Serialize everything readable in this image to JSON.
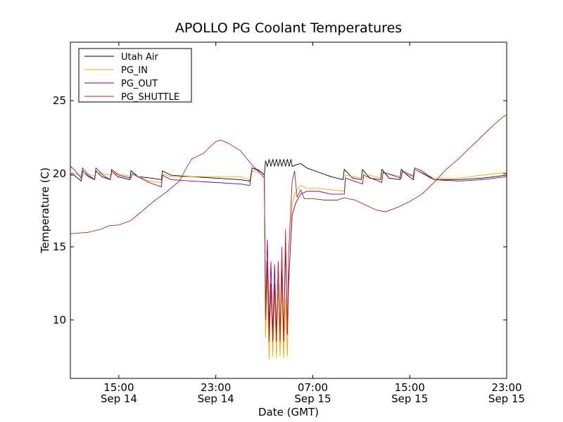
{
  "chart_data": {
    "type": "line",
    "title": "APOLLO PG Coolant Temperatures",
    "xlabel": "Date (GMT)",
    "ylabel": "Temperature (C)",
    "xlim_hours": [
      11,
      47
    ],
    "ylim": [
      6,
      29
    ],
    "yticks": [
      10,
      15,
      20,
      25
    ],
    "xticks": [
      {
        "hour": 15,
        "time": "15:00",
        "date": "Sep 14"
      },
      {
        "hour": 23,
        "time": "23:00",
        "date": "Sep 14"
      },
      {
        "hour": 31,
        "time": "07:00",
        "date": "Sep 15"
      },
      {
        "hour": 39,
        "time": "15:00",
        "date": "Sep 15"
      },
      {
        "hour": 47,
        "time": "23:00",
        "date": "Sep 15"
      }
    ],
    "legend_position": "top-left",
    "x_unit": "hours since Sep 14 00:00 GMT",
    "series": [
      {
        "name": "Utah Air",
        "color": "#000000",
        "points": [
          [
            11,
            19.9
          ],
          [
            11.3,
            19.9
          ],
          [
            11.9,
            19.5
          ],
          [
            12.0,
            20.2
          ],
          [
            12.5,
            19.8
          ],
          [
            13.0,
            19.6
          ],
          [
            13.1,
            20.2
          ],
          [
            13.6,
            19.8
          ],
          [
            14.3,
            19.6
          ],
          [
            14.4,
            20.2
          ],
          [
            14.9,
            19.8
          ],
          [
            15.9,
            19.6
          ],
          [
            16.0,
            20.2
          ],
          [
            16.6,
            19.8
          ],
          [
            17.7,
            19.7
          ],
          [
            18.5,
            19.6
          ],
          [
            18.6,
            20.2
          ],
          [
            19.3,
            19.9
          ],
          [
            21,
            19.8
          ],
          [
            23,
            19.7
          ],
          [
            25,
            19.6
          ],
          [
            25.8,
            19.5
          ],
          [
            26.0,
            20.4
          ],
          [
            26.4,
            20.3
          ],
          [
            26.8,
            20.1
          ],
          [
            27.0,
            19.9
          ],
          [
            27.1,
            20.9
          ],
          [
            27.25,
            20.5
          ],
          [
            27.4,
            21.0
          ],
          [
            27.55,
            20.5
          ],
          [
            27.7,
            21.0
          ],
          [
            27.85,
            20.5
          ],
          [
            28.0,
            21.0
          ],
          [
            28.15,
            20.5
          ],
          [
            28.3,
            21.0
          ],
          [
            28.45,
            20.5
          ],
          [
            28.6,
            21.0
          ],
          [
            28.75,
            20.5
          ],
          [
            28.9,
            21.0
          ],
          [
            29.05,
            20.5
          ],
          [
            29.2,
            21.0
          ],
          [
            29.3,
            20.5
          ],
          [
            29.6,
            20.6
          ],
          [
            30.0,
            20.7
          ],
          [
            30.5,
            20.4
          ],
          [
            31.5,
            20.1
          ],
          [
            32.5,
            19.8
          ],
          [
            33.5,
            19.6
          ],
          [
            33.6,
            20.3
          ],
          [
            34.3,
            19.7
          ],
          [
            35.0,
            19.6
          ],
          [
            35.1,
            20.3
          ],
          [
            35.7,
            19.7
          ],
          [
            36.6,
            19.6
          ],
          [
            36.7,
            20.3
          ],
          [
            37.3,
            19.7
          ],
          [
            38.2,
            19.6
          ],
          [
            38.3,
            20.3
          ],
          [
            38.8,
            19.9
          ],
          [
            39.3,
            19.6
          ],
          [
            39.4,
            20.3
          ],
          [
            39.9,
            20.1
          ],
          [
            41,
            19.6
          ],
          [
            43,
            19.6
          ],
          [
            45,
            19.7
          ],
          [
            47,
            19.9
          ],
          [
            47.2,
            19.9
          ]
        ]
      },
      {
        "name": "PG_IN",
        "color": "#f0a500",
        "points": [
          [
            11,
            20.0
          ],
          [
            11.4,
            20.0
          ],
          [
            12.0,
            19.8
          ],
          [
            12.1,
            20.1
          ],
          [
            13.0,
            19.8
          ],
          [
            13.1,
            20.1
          ],
          [
            14.4,
            19.9
          ],
          [
            14.5,
            20.1
          ],
          [
            16.0,
            19.8
          ],
          [
            16.1,
            20.0
          ],
          [
            17.5,
            19.5
          ],
          [
            18.5,
            19.4
          ],
          [
            18.6,
            20.0
          ],
          [
            19.3,
            19.8
          ],
          [
            21,
            19.8
          ],
          [
            23,
            19.8
          ],
          [
            25,
            19.8
          ],
          [
            25.8,
            19.6
          ],
          [
            26.0,
            20.2
          ],
          [
            26.8,
            20.0
          ],
          [
            27.0,
            19.9
          ],
          [
            27.1,
            8.8
          ],
          [
            27.25,
            13.0
          ],
          [
            27.4,
            7.3
          ],
          [
            27.55,
            12.5
          ],
          [
            27.7,
            7.5
          ],
          [
            27.85,
            12.0
          ],
          [
            28.0,
            7.4
          ],
          [
            28.15,
            12.5
          ],
          [
            28.3,
            7.5
          ],
          [
            28.45,
            12.5
          ],
          [
            28.6,
            7.4
          ],
          [
            28.75,
            11.5
          ],
          [
            28.9,
            7.5
          ],
          [
            29.0,
            12.0
          ],
          [
            29.3,
            18.0
          ],
          [
            29.6,
            18.8
          ],
          [
            30.0,
            19.2
          ],
          [
            30.5,
            19.0
          ],
          [
            31.5,
            19.0
          ],
          [
            32.5,
            18.9
          ],
          [
            33.6,
            18.8
          ],
          [
            33.7,
            19.9
          ],
          [
            35.1,
            19.7
          ],
          [
            35.2,
            20.0
          ],
          [
            36.7,
            19.7
          ],
          [
            36.8,
            20.1
          ],
          [
            38.3,
            19.8
          ],
          [
            38.4,
            20.1
          ],
          [
            39.3,
            19.9
          ],
          [
            39.4,
            20.3
          ],
          [
            40,
            20.1
          ],
          [
            41,
            19.7
          ],
          [
            43,
            19.7
          ],
          [
            45,
            19.9
          ],
          [
            47,
            20.1
          ],
          [
            47.2,
            20.1
          ]
        ]
      },
      {
        "name": "PG_OUT",
        "color": "#800080",
        "points": [
          [
            11,
            20.5
          ],
          [
            11.3,
            20.3
          ],
          [
            11.9,
            19.7
          ],
          [
            12.0,
            20.4
          ],
          [
            12.5,
            19.9
          ],
          [
            13.0,
            19.6
          ],
          [
            13.1,
            20.4
          ],
          [
            13.7,
            19.9
          ],
          [
            14.3,
            19.6
          ],
          [
            14.4,
            20.3
          ],
          [
            15.0,
            19.9
          ],
          [
            16.0,
            19.7
          ],
          [
            16.1,
            20.0
          ],
          [
            17.5,
            19.4
          ],
          [
            18.5,
            19.1
          ],
          [
            18.6,
            19.9
          ],
          [
            19.3,
            19.6
          ],
          [
            21,
            19.5
          ],
          [
            23,
            19.4
          ],
          [
            25,
            19.3
          ],
          [
            25.8,
            19.2
          ],
          [
            26.0,
            20.4
          ],
          [
            26.8,
            20.1
          ],
          [
            27.0,
            19.9
          ],
          [
            27.1,
            10.5
          ],
          [
            27.25,
            15.5
          ],
          [
            27.4,
            9.5
          ],
          [
            27.55,
            14.0
          ],
          [
            27.7,
            9.0
          ],
          [
            27.85,
            13.8
          ],
          [
            28.0,
            9.0
          ],
          [
            28.15,
            14.0
          ],
          [
            28.3,
            9.0
          ],
          [
            28.45,
            13.5
          ],
          [
            28.6,
            8.6
          ],
          [
            28.75,
            15.0
          ],
          [
            28.9,
            9.0
          ],
          [
            29.0,
            12.5
          ],
          [
            29.3,
            17.2
          ],
          [
            29.6,
            18.0
          ],
          [
            30.0,
            18.6
          ],
          [
            30.5,
            18.8
          ],
          [
            31.5,
            18.8
          ],
          [
            32.5,
            18.6
          ],
          [
            33.6,
            18.6
          ],
          [
            33.7,
            19.7
          ],
          [
            35.1,
            19.3
          ],
          [
            35.2,
            19.9
          ],
          [
            36.7,
            19.4
          ],
          [
            36.8,
            20.1
          ],
          [
            38.3,
            19.7
          ],
          [
            38.4,
            20.2
          ],
          [
            39.3,
            19.8
          ],
          [
            39.4,
            20.4
          ],
          [
            40,
            20.2
          ],
          [
            41,
            19.6
          ],
          [
            43,
            19.5
          ],
          [
            45,
            19.6
          ],
          [
            47,
            19.8
          ],
          [
            47.2,
            19.8
          ]
        ]
      },
      {
        "name": "PG_SHUTTLE",
        "color": "#a52a2a",
        "points": [
          [
            11,
            15.9
          ],
          [
            12.5,
            16.0
          ],
          [
            13.5,
            16.2
          ],
          [
            14.2,
            16.45
          ],
          [
            15.0,
            16.5
          ],
          [
            16.0,
            16.8
          ],
          [
            17.0,
            17.5
          ],
          [
            18.0,
            18.2
          ],
          [
            19.0,
            18.8
          ],
          [
            20.0,
            19.5
          ],
          [
            20.5,
            20.3
          ],
          [
            21.0,
            21.0
          ],
          [
            22.0,
            21.4
          ],
          [
            22.6,
            21.9
          ],
          [
            23.0,
            22.2
          ],
          [
            23.4,
            22.3
          ],
          [
            24.0,
            22.1
          ],
          [
            25.0,
            21.6
          ],
          [
            26.0,
            20.6
          ],
          [
            26.8,
            19.9
          ],
          [
            27.0,
            19.7
          ],
          [
            27.1,
            10.0
          ],
          [
            27.25,
            14.0
          ],
          [
            27.4,
            8.5
          ],
          [
            27.55,
            12.5
          ],
          [
            27.7,
            8.5
          ],
          [
            27.85,
            12.5
          ],
          [
            28.0,
            8.5
          ],
          [
            28.15,
            14.0
          ],
          [
            28.3,
            8.5
          ],
          [
            28.45,
            15.0
          ],
          [
            28.6,
            8.5
          ],
          [
            28.75,
            16.2
          ],
          [
            28.9,
            9.0
          ],
          [
            29.0,
            14.5
          ],
          [
            29.3,
            19.5
          ],
          [
            29.5,
            20.2
          ],
          [
            29.7,
            18.4
          ],
          [
            30.0,
            18.9
          ],
          [
            30.3,
            18.3
          ],
          [
            31.0,
            18.3
          ],
          [
            32.0,
            18.2
          ],
          [
            33.0,
            18.2
          ],
          [
            33.6,
            18.35
          ],
          [
            34.5,
            18.2
          ],
          [
            35.5,
            17.8
          ],
          [
            36.3,
            17.5
          ],
          [
            37.0,
            17.4
          ],
          [
            38.0,
            17.7
          ],
          [
            39.0,
            18.1
          ],
          [
            40.0,
            18.6
          ],
          [
            41.0,
            19.4
          ],
          [
            42.0,
            20.3
          ],
          [
            43.0,
            21.0
          ],
          [
            44.0,
            21.8
          ],
          [
            45.0,
            22.6
          ],
          [
            46.0,
            23.4
          ],
          [
            46.7,
            23.9
          ],
          [
            47.2,
            24.1
          ]
        ]
      }
    ]
  }
}
